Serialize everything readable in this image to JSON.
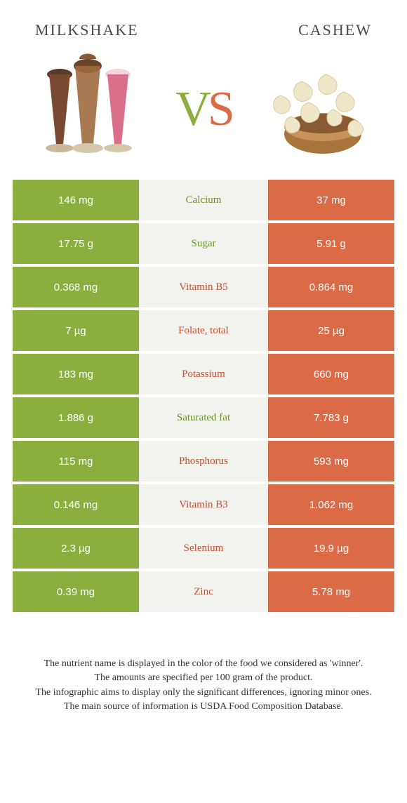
{
  "header": {
    "left_title": "Milkshake",
    "right_title": "Cashew"
  },
  "vs": {
    "v": "V",
    "s": "S"
  },
  "colors": {
    "green": "#8cae3e",
    "orange": "#db6b46",
    "mid_bg": "#f2f2ee",
    "mid_text_green": "#6f9228",
    "mid_text_orange": "#c74f2e"
  },
  "rows": [
    {
      "left": "146 mg",
      "label": "Calcium",
      "right": "37 mg",
      "winner": "left"
    },
    {
      "left": "17.75 g",
      "label": "Sugar",
      "right": "5.91 g",
      "winner": "left"
    },
    {
      "left": "0.368 mg",
      "label": "Vitamin B5",
      "right": "0.864 mg",
      "winner": "right"
    },
    {
      "left": "7 µg",
      "label": "Folate, total",
      "right": "25 µg",
      "winner": "right"
    },
    {
      "left": "183 mg",
      "label": "Potassium",
      "right": "660 mg",
      "winner": "right"
    },
    {
      "left": "1.886 g",
      "label": "Saturated fat",
      "right": "7.783 g",
      "winner": "left"
    },
    {
      "left": "115 mg",
      "label": "Phosphorus",
      "right": "593 mg",
      "winner": "right"
    },
    {
      "left": "0.146 mg",
      "label": "Vitamin B3",
      "right": "1.062 mg",
      "winner": "right"
    },
    {
      "left": "2.3 µg",
      "label": "Selenium",
      "right": "19.9 µg",
      "winner": "right"
    },
    {
      "left": "0.39 mg",
      "label": "Zinc",
      "right": "5.78 mg",
      "winner": "right"
    }
  ],
  "footer": {
    "line1": "The nutrient name is displayed in the color of the food we considered as 'winner'.",
    "line2": "The amounts are specified per 100 gram of the product.",
    "line3": "The infographic aims to display only the significant differences, ignoring minor ones.",
    "line4": "The main source of information is USDA Food Composition Database."
  }
}
